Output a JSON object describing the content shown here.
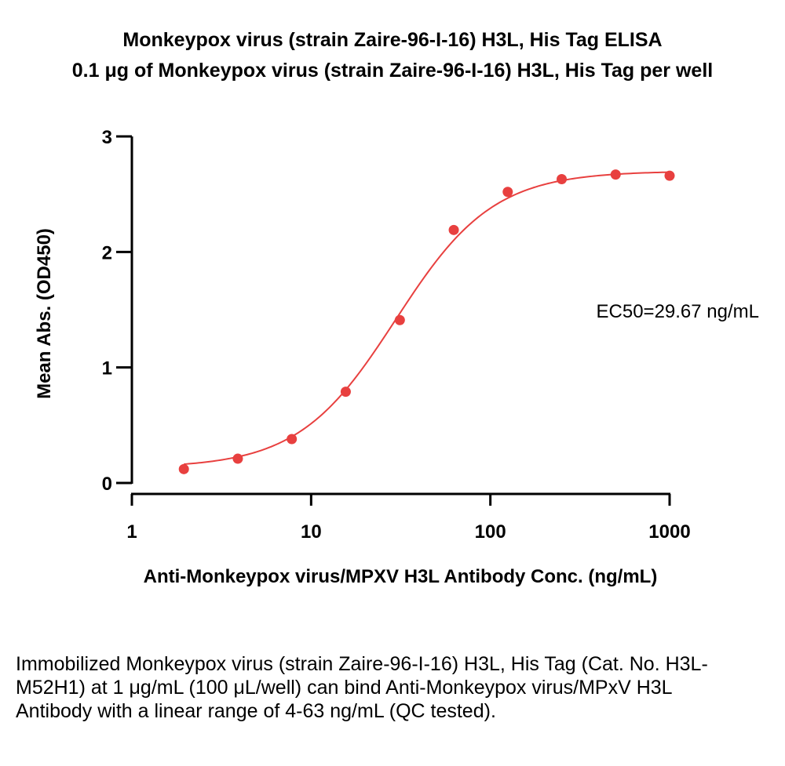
{
  "title_line1": "Monkeypox virus (strain Zaire-96-I-16) H3L, His Tag ELISA",
  "title_line2": "0.1 μg of Monkeypox virus (strain Zaire-96-I-16) H3L, His Tag per well",
  "caption": "Immobilized Monkeypox virus (strain Zaire-96-I-16) H3L, His Tag (Cat. No. H3L-M52H1) at 1 μg/mL (100 μL/well) can bind Anti-Monkeypox virus/MPxV H3L Antibody with a linear range of 4-63 ng/mL (QC tested).",
  "colors": {
    "series": "#e8403f",
    "axis": "#000000"
  },
  "chart_data": {
    "type": "scatter",
    "xlabel": "Anti-Monkeypox virus/MPXV H3L Antibody Conc. (ng/mL)",
    "ylabel": "Mean Abs. (OD450)",
    "xscale": "log",
    "xlim": [
      1,
      1000
    ],
    "ylim": [
      0,
      3
    ],
    "xticks": [
      1,
      10,
      100,
      1000
    ],
    "xtick_labels": [
      "1",
      "10",
      "100",
      "1000"
    ],
    "yticks": [
      0,
      1,
      2,
      3
    ],
    "ytick_labels": [
      "0",
      "1",
      "2",
      "3"
    ],
    "grid": false,
    "annotation": "EC50=29.67 ng/mL",
    "series": [
      {
        "x": [
          1.95,
          3.9,
          7.8,
          15.6,
          31.25,
          62.5,
          125,
          250,
          500,
          1000
        ],
        "y": [
          0.12,
          0.21,
          0.38,
          0.79,
          1.41,
          2.19,
          2.52,
          2.63,
          2.67,
          2.66
        ],
        "fit": {
          "model": "4PL",
          "bottom": 0.13,
          "top": 2.7,
          "ec50": 29.67,
          "hill": 1.6
        }
      }
    ]
  }
}
